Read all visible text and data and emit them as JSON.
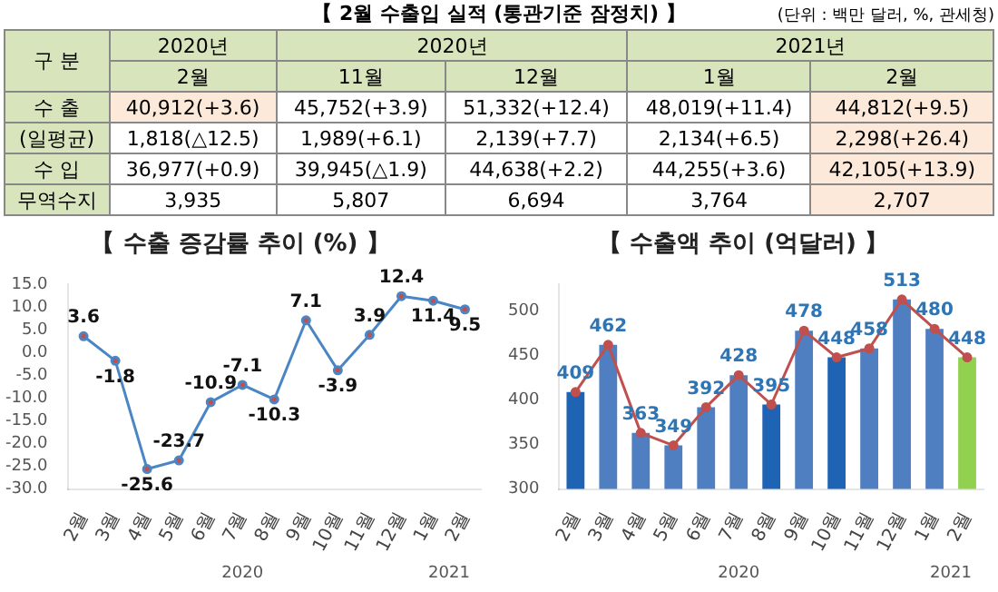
{
  "chart_data": [
    {
      "type": "other",
      "title": "【 2월 수출입 실적 (통관기준 잠정치) 】",
      "annotations": [
        "(단위 : 백만 달러, %, 관세청)",
        "구 분",
        "2020년",
        "2020년",
        "2021년",
        "2월",
        "11월",
        "12월",
        "1월",
        "2월",
        "수 출",
        "40,912(+3.6)",
        "45,752(+3.9)",
        "51,332(+12.4)",
        "48,019(+11.4)",
        "44,812(+9.5)",
        "(일평균)",
        "1,818(△12.5)",
        "1,989(+6.1)",
        "2,139(+7.7)",
        "2,134(+6.5)",
        "2,298(+26.4)",
        "수 입",
        "36,977(+0.9)",
        "39,945(△1.9)",
        "44,638(+2.2)",
        "44,255(+3.6)",
        "42,105(+13.9)",
        "무역수지",
        "3,935",
        "5,807",
        "6,694",
        "3,764",
        "2,707"
      ]
    },
    {
      "type": "line",
      "title": "【 수출 증감률 추이 (%) 】",
      "categories": [
        "2월",
        "3월",
        "4월",
        "5월",
        "6월",
        "7월",
        "8월",
        "9월",
        "10월",
        "11월",
        "12월",
        "1월",
        "2월"
      ],
      "series": [
        {
          "color": "#4a86c5",
          "values": [
            3.6,
            -1.8,
            -25.6,
            -23.7,
            -10.9,
            -7.1,
            -10.3,
            7.1,
            -3.9,
            3.9,
            12.4,
            11.4,
            9.5
          ]
        }
      ],
      "ylim": [
        -30,
        15
      ],
      "yticks": [
        {
          "value": -30,
          "label": "-30.0"
        },
        {
          "value": -25,
          "label": "-25.0"
        },
        {
          "value": -20,
          "label": "-20.0"
        },
        {
          "value": -15,
          "label": "-15.0"
        },
        {
          "value": -10,
          "label": "-10.0"
        },
        {
          "value": -5,
          "label": "-5.0"
        },
        {
          "value": 0,
          "label": "0.0"
        },
        {
          "value": 5,
          "label": "5.0"
        },
        {
          "value": 10,
          "label": "10.0"
        },
        {
          "value": 15,
          "label": "15.0"
        }
      ],
      "data_labels": true,
      "marker": "circle",
      "annotations": [
        "2020",
        "2021"
      ]
    },
    {
      "type": "bar",
      "title": "【 수출액 추이 (억달러) 】",
      "categories": [
        "2월",
        "3월",
        "4월",
        "5월",
        "6월",
        "7월",
        "8월",
        "9월",
        "10월",
        "11월",
        "12월",
        "1월",
        "2월"
      ],
      "series": [
        {
          "type": "bar",
          "colors": [
            "#1f64b4",
            "#4f7fc0",
            "#4f7fc0",
            "#4f7fc0",
            "#4f7fc0",
            "#4f7fc0",
            "#1f64b4",
            "#4f7fc0",
            "#1f64b4",
            "#4f7fc0",
            "#4f7fc0",
            "#4f7fc0",
            "#92d050"
          ],
          "values": [
            409,
            462,
            363,
            349,
            392,
            428,
            395,
            478,
            448,
            458,
            513,
            480,
            448
          ],
          "value_labels": [
            "409",
            "462",
            "363",
            "349",
            "392",
            "428",
            "395",
            "478",
            "448",
            "458",
            "513",
            "480",
            "448"
          ]
        },
        {
          "type": "line",
          "color": "#c0504d",
          "values": [
            409,
            462,
            363,
            349,
            392,
            428,
            395,
            478,
            448,
            458,
            513,
            480,
            448
          ]
        }
      ],
      "ylim": [
        300,
        530
      ],
      "yticks": [
        300,
        350,
        400,
        450,
        500
      ],
      "marker": "circle",
      "annotations": [
        "2020",
        "2021"
      ]
    }
  ]
}
